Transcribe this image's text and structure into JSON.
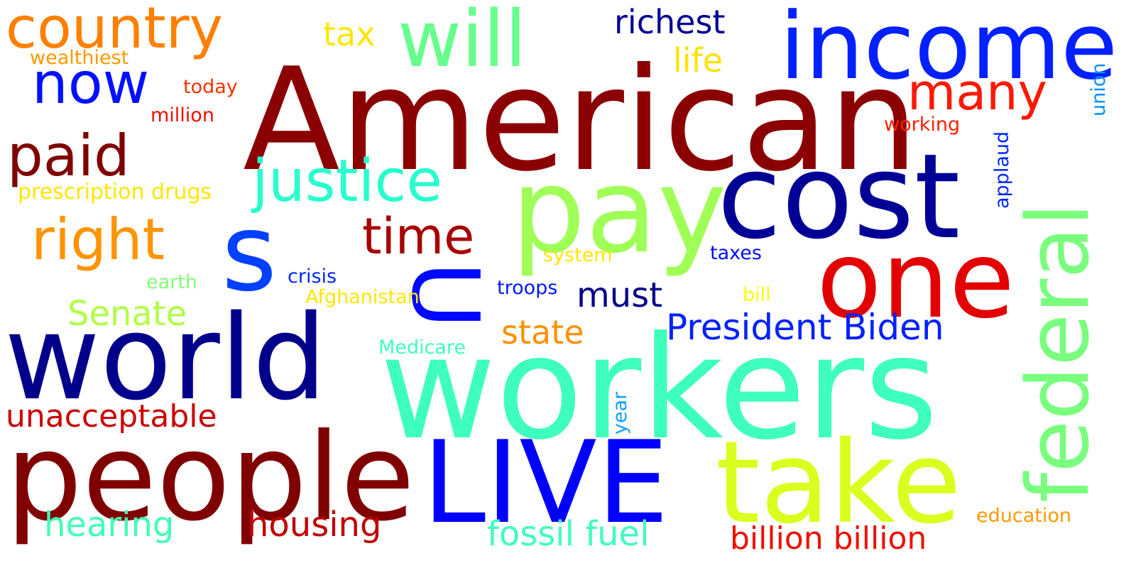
{
  "words": [
    {
      "text": "American",
      "color": "#8b0000"
    },
    {
      "text": "workers",
      "color": "#3fffbd"
    },
    {
      "text": "people",
      "color": "#800000"
    },
    {
      "text": "world",
      "color": "#00008b"
    },
    {
      "text": "pay",
      "color": "#a0ff57"
    },
    {
      "text": "cost",
      "color": "#000096"
    },
    {
      "text": "income",
      "color": "#0020ff"
    },
    {
      "text": "one",
      "color": "#e20000"
    },
    {
      "text": "take",
      "color": "#daff1e"
    },
    {
      "text": "LIVE",
      "color": "#0000ff"
    },
    {
      "text": "will",
      "color": "#66ff8c"
    },
    {
      "text": "country",
      "color": "#ff8000"
    },
    {
      "text": "s",
      "color": "#0040ff"
    },
    {
      "text": "U",
      "color": "#0008ff"
    },
    {
      "text": "federal",
      "color": "#79ff7d"
    },
    {
      "text": "now",
      "color": "#0010ff"
    },
    {
      "text": "paid",
      "color": "#800000"
    },
    {
      "text": "justice",
      "color": "#29ffce"
    },
    {
      "text": "right",
      "color": "#ff9400"
    },
    {
      "text": "time",
      "color": "#a80000"
    },
    {
      "text": "many",
      "color": "#ff1800"
    },
    {
      "text": "must",
      "color": "#00008b"
    },
    {
      "text": "President Biden",
      "color": "#0020ff"
    },
    {
      "text": "state",
      "color": "#ff9000"
    },
    {
      "text": "Senate",
      "color": "#b0ff46"
    },
    {
      "text": "unacceptable",
      "color": "#cc0000"
    },
    {
      "text": "hearing",
      "color": "#40ffb6"
    },
    {
      "text": "housing",
      "color": "#c00000"
    },
    {
      "text": "fossil fuel",
      "color": "#3fffc0"
    },
    {
      "text": "billion billion",
      "color": "#ee1000"
    },
    {
      "text": "richest",
      "color": "#000096"
    },
    {
      "text": "tax",
      "color": "#ffe600"
    },
    {
      "text": "life",
      "color": "#ffe200"
    },
    {
      "text": "prescription drugs",
      "color": "#ffe600"
    },
    {
      "text": "wealthiest",
      "color": "#ff9900"
    },
    {
      "text": "today",
      "color": "#ff3300"
    },
    {
      "text": "million",
      "color": "#ee1000"
    },
    {
      "text": "working",
      "color": "#ff2000"
    },
    {
      "text": "applaud",
      "color": "#0028ff"
    },
    {
      "text": "union",
      "color": "#0090ff"
    },
    {
      "text": "system",
      "color": "#ffe600"
    },
    {
      "text": "taxes",
      "color": "#0010ff"
    },
    {
      "text": "earth",
      "color": "#80ff78"
    },
    {
      "text": "crisis",
      "color": "#0028ff"
    },
    {
      "text": "Afghanistan",
      "color": "#ffe600"
    },
    {
      "text": "troops",
      "color": "#0018ff"
    },
    {
      "text": "bill",
      "color": "#ffff00"
    },
    {
      "text": "Medicare",
      "color": "#40ffc0"
    },
    {
      "text": "year",
      "color": "#0aa0ff"
    },
    {
      "text": "education",
      "color": "#ff9900"
    }
  ]
}
